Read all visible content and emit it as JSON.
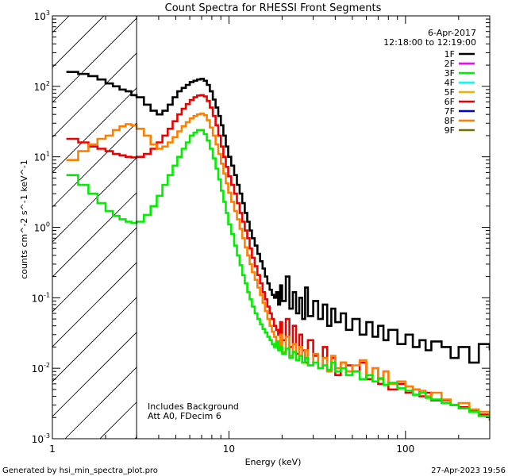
{
  "chart_data": {
    "type": "line",
    "title": "Count Spectra for RHESSI Front Segments",
    "xlabel": "Energy (keV)",
    "ylabel": "counts cm^-2 s^-1 keV^-1",
    "x_scale": "log",
    "y_scale": "log",
    "xlim": [
      1,
      300
    ],
    "ylim": [
      0.001,
      1000
    ],
    "x_ticks": [
      {
        "value": 10,
        "label": "10"
      },
      {
        "value": 100,
        "label": "100"
      }
    ],
    "x_edge_labels": [
      {
        "value": 1,
        "label": "1"
      }
    ],
    "y_ticks": [
      {
        "value": 0.001,
        "base": "10",
        "exp": "-3"
      },
      {
        "value": 0.01,
        "base": "10",
        "exp": "-2"
      },
      {
        "value": 0.1,
        "base": "10",
        "exp": "-1"
      },
      {
        "value": 1,
        "base": "10",
        "exp": "0"
      },
      {
        "value": 10,
        "base": "10",
        "exp": "1"
      },
      {
        "value": 100,
        "base": "10",
        "exp": "2"
      },
      {
        "value": 1000,
        "base": "10",
        "exp": "3"
      }
    ],
    "date": "6-Apr-2017",
    "time_range": "12:18:00 to 12:19:00",
    "attenuator_cutoff_kev": 3,
    "annotations": [
      "Includes Background",
      "Att A0, FDecim 6"
    ],
    "legend": [
      {
        "name": "1F",
        "color": "#000000"
      },
      {
        "name": "2F",
        "color": "#ff00ff"
      },
      {
        "name": "3F",
        "color": "#00ee00"
      },
      {
        "name": "4F",
        "color": "#00ffff"
      },
      {
        "name": "5F",
        "color": "#f0b000"
      },
      {
        "name": "6F",
        "color": "#ee0000"
      },
      {
        "name": "7F",
        "color": "#0000dd"
      },
      {
        "name": "8F",
        "color": "#ff8000"
      },
      {
        "name": "9F",
        "color": "#707000"
      }
    ],
    "series": [
      {
        "name": "1F",
        "color": "#000000",
        "x": [
          1.2,
          1.4,
          1.6,
          1.8,
          2.0,
          2.2,
          2.4,
          2.6,
          2.8,
          3.0,
          3.3,
          3.6,
          3.9,
          4.2,
          4.5,
          4.8,
          5.1,
          5.4,
          5.7,
          6.0,
          6.3,
          6.6,
          6.9,
          7.2,
          7.5,
          7.8,
          8.1,
          8.4,
          8.7,
          9.0,
          9.3,
          9.6,
          9.9,
          10.3,
          10.7,
          11.1,
          11.5,
          11.9,
          12.3,
          12.7,
          13.1,
          13.5,
          14,
          14.5,
          15,
          15.5,
          16,
          16.5,
          17,
          17.5,
          18,
          18.5,
          19,
          19.5,
          20,
          21,
          22,
          23,
          24,
          25,
          26,
          27,
          28,
          30,
          32,
          34,
          36,
          38,
          40,
          43,
          46,
          50,
          55,
          60,
          65,
          70,
          75,
          80,
          90,
          100,
          110,
          120,
          130,
          140,
          160,
          180,
          200,
          230,
          260,
          300
        ],
        "y": [
          160,
          150,
          140,
          125,
          110,
          100,
          90,
          85,
          75,
          70,
          55,
          45,
          40,
          45,
          55,
          70,
          85,
          95,
          105,
          115,
          120,
          125,
          128,
          120,
          105,
          85,
          65,
          50,
          38,
          28,
          20,
          14,
          10,
          7.5,
          5.5,
          4,
          3,
          2.2,
          1.6,
          1.2,
          0.9,
          0.7,
          0.55,
          0.42,
          0.33,
          0.26,
          0.2,
          0.16,
          0.13,
          0.11,
          0.1,
          0.12,
          0.08,
          0.15,
          0.09,
          0.2,
          0.07,
          0.12,
          0.06,
          0.1,
          0.05,
          0.14,
          0.055,
          0.09,
          0.05,
          0.08,
          0.04,
          0.07,
          0.045,
          0.06,
          0.035,
          0.05,
          0.03,
          0.045,
          0.028,
          0.04,
          0.025,
          0.035,
          0.022,
          0.03,
          0.02,
          0.025,
          0.018,
          0.024,
          0.02,
          0.014,
          0.02,
          0.012,
          0.022,
          0.018
        ]
      },
      {
        "name": "6F",
        "color": "#ee0000",
        "x": [
          1.2,
          1.4,
          1.6,
          1.8,
          2.0,
          2.2,
          2.4,
          2.6,
          2.8,
          3.0,
          3.3,
          3.6,
          3.9,
          4.2,
          4.5,
          4.8,
          5.1,
          5.4,
          5.7,
          6.0,
          6.3,
          6.6,
          6.9,
          7.2,
          7.5,
          7.8,
          8.1,
          8.4,
          8.7,
          9.0,
          9.3,
          9.6,
          9.9,
          10.3,
          10.7,
          11.1,
          11.5,
          11.9,
          12.3,
          12.7,
          13.1,
          13.5,
          14,
          14.5,
          15,
          15.5,
          16,
          16.5,
          17,
          17.5,
          18,
          18.5,
          19,
          19.5,
          20,
          21,
          22,
          23,
          24,
          25,
          26,
          27,
          28,
          30,
          32,
          34,
          36,
          38,
          40,
          43,
          46,
          50,
          55,
          60,
          65,
          70,
          75,
          80,
          90,
          100,
          110,
          120,
          130,
          140,
          160,
          180,
          200,
          230,
          260,
          300
        ],
        "y": [
          18,
          16,
          14,
          13,
          12,
          11,
          10.5,
          10,
          9.8,
          10,
          11,
          13,
          16,
          20,
          25,
          32,
          40,
          48,
          56,
          64,
          70,
          74,
          75,
          72,
          62,
          50,
          38,
          28,
          20,
          14,
          10,
          7.2,
          5.3,
          4,
          3,
          2.2,
          1.6,
          1.2,
          0.9,
          0.7,
          0.5,
          0.37,
          0.28,
          0.21,
          0.16,
          0.12,
          0.095,
          0.075,
          0.06,
          0.05,
          0.04,
          0.035,
          0.03,
          0.045,
          0.025,
          0.05,
          0.02,
          0.04,
          0.016,
          0.03,
          0.018,
          0.012,
          0.025,
          0.015,
          0.01,
          0.02,
          0.009,
          0.014,
          0.008,
          0.012,
          0.011,
          0.009,
          0.012,
          0.007,
          0.01,
          0.006,
          0.009,
          0.005,
          0.006,
          0.0045,
          0.005,
          0.004,
          0.0045,
          0.0035,
          0.0035,
          0.003,
          0.0028,
          0.0025,
          0.0022,
          0.0018
        ]
      },
      {
        "name": "8F",
        "color": "#ff8000",
        "x": [
          1.2,
          1.4,
          1.6,
          1.8,
          2.0,
          2.2,
          2.4,
          2.6,
          2.8,
          3.0,
          3.3,
          3.6,
          3.9,
          4.2,
          4.5,
          4.8,
          5.1,
          5.4,
          5.7,
          6.0,
          6.3,
          6.6,
          6.9,
          7.2,
          7.5,
          7.8,
          8.1,
          8.4,
          8.7,
          9.0,
          9.3,
          9.6,
          9.9,
          10.3,
          10.7,
          11.1,
          11.5,
          11.9,
          12.3,
          12.7,
          13.1,
          13.5,
          14,
          14.5,
          15,
          15.5,
          16,
          16.5,
          17,
          17.5,
          18,
          18.5,
          19,
          19.5,
          20,
          21,
          22,
          23,
          24,
          25,
          26,
          27,
          28,
          30,
          32,
          34,
          36,
          38,
          40,
          43,
          46,
          50,
          55,
          60,
          65,
          70,
          75,
          80,
          90,
          100,
          110,
          120,
          130,
          140,
          160,
          180,
          200,
          230,
          260,
          300
        ],
        "y": [
          9,
          12,
          15,
          18,
          20,
          24,
          27,
          29,
          28,
          25,
          20,
          15,
          13,
          14,
          16,
          19,
          23,
          27,
          31,
          35,
          38,
          40,
          41,
          39,
          33,
          26,
          20,
          15,
          11,
          8,
          5.8,
          4.2,
          3.1,
          2.3,
          1.7,
          1.3,
          0.95,
          0.7,
          0.52,
          0.4,
          0.3,
          0.23,
          0.18,
          0.14,
          0.11,
          0.085,
          0.065,
          0.05,
          0.04,
          0.033,
          0.028,
          0.024,
          0.02,
          0.03,
          0.017,
          0.028,
          0.015,
          0.022,
          0.013,
          0.02,
          0.012,
          0.018,
          0.011,
          0.016,
          0.01,
          0.014,
          0.009,
          0.015,
          0.01,
          0.012,
          0.009,
          0.011,
          0.013,
          0.008,
          0.01,
          0.007,
          0.009,
          0.006,
          0.0065,
          0.0055,
          0.005,
          0.0048,
          0.004,
          0.0045,
          0.0036,
          0.003,
          0.0032,
          0.0026,
          0.0024,
          0.002
        ]
      },
      {
        "name": "3F",
        "color": "#00ee00",
        "x": [
          1.2,
          1.4,
          1.6,
          1.8,
          2.0,
          2.2,
          2.4,
          2.6,
          2.8,
          3.0,
          3.3,
          3.6,
          3.9,
          4.2,
          4.5,
          4.8,
          5.1,
          5.4,
          5.7,
          6.0,
          6.3,
          6.6,
          6.9,
          7.2,
          7.5,
          7.8,
          8.1,
          8.4,
          8.7,
          9.0,
          9.3,
          9.6,
          9.9,
          10.3,
          10.7,
          11.1,
          11.5,
          11.9,
          12.3,
          12.7,
          13.1,
          13.5,
          14,
          14.5,
          15,
          15.5,
          16,
          16.5,
          17,
          17.5,
          18,
          18.5,
          19,
          19.5,
          20,
          21,
          22,
          23,
          24,
          25,
          26,
          27,
          28,
          30,
          32,
          34,
          36,
          38,
          40,
          43,
          46,
          50,
          55,
          60,
          65,
          70,
          75,
          80,
          90,
          100,
          110,
          120,
          130,
          140,
          160,
          180,
          200,
          230,
          260,
          300
        ],
        "y": [
          5.5,
          4,
          3,
          2.2,
          1.7,
          1.45,
          1.3,
          1.2,
          1.15,
          1.2,
          1.5,
          2,
          2.8,
          4,
          5.5,
          7.5,
          10,
          13,
          16,
          20,
          22,
          24,
          24,
          21,
          17,
          13,
          9.5,
          6.8,
          4.8,
          3.3,
          2.3,
          1.6,
          1.1,
          0.8,
          0.55,
          0.4,
          0.29,
          0.21,
          0.16,
          0.12,
          0.095,
          0.075,
          0.06,
          0.05,
          0.042,
          0.036,
          0.032,
          0.028,
          0.025,
          0.022,
          0.02,
          0.024,
          0.018,
          0.02,
          0.016,
          0.019,
          0.014,
          0.017,
          0.013,
          0.015,
          0.012,
          0.014,
          0.011,
          0.012,
          0.01,
          0.011,
          0.0095,
          0.012,
          0.009,
          0.01,
          0.008,
          0.009,
          0.007,
          0.008,
          0.0065,
          0.0072,
          0.0058,
          0.0062,
          0.0052,
          0.0048,
          0.0042,
          0.0045,
          0.0038,
          0.0036,
          0.0032,
          0.003,
          0.0027,
          0.0024,
          0.0021,
          0.0019
        ]
      }
    ]
  },
  "footer": {
    "generated_by": "Generated by hsi_min_spectra_plot.pro",
    "timestamp": "27-Apr-2023 19:56"
  }
}
